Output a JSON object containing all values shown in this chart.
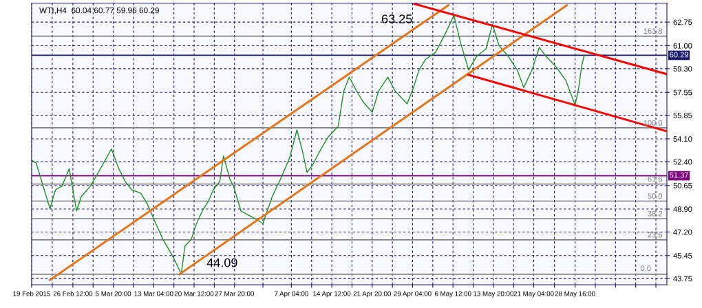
{
  "chart_data": {
    "type": "line",
    "title": "WTI,H4  60.04 60.77 59.96 60.29",
    "xlim": [
      "2015-02-19T00:00",
      "2015-06-14T08:00"
    ],
    "ylim": [
      43.28,
      64.16
    ],
    "xticks": [
      {
        "value": "2015-02-19T00:00",
        "label": "19 Feb 2015"
      },
      {
        "value": "2015-02-22T18:00",
        "label": null
      },
      {
        "value": "2015-02-26T12:00",
        "label": "26 Feb 12:00"
      },
      {
        "value": "2015-03-02T04:00",
        "label": null
      },
      {
        "value": "2015-03-05T20:00",
        "label": "5 Mar 20:00"
      },
      {
        "value": "2015-03-09T12:00",
        "label": null
      },
      {
        "value": "2015-03-13T04:00",
        "label": "13 Mar 04:00"
      },
      {
        "value": "2015-03-16T20:00",
        "label": null
      },
      {
        "value": "2015-03-20T12:00",
        "label": "20 Mar 12:00"
      },
      {
        "value": "2015-03-24T04:00",
        "label": null
      },
      {
        "value": "2015-03-27T20:00",
        "label": "27 Mar 20:00"
      },
      {
        "value": "2015-04-02T00:00",
        "label": null
      },
      {
        "value": "2015-04-07T04:00",
        "label": "7 Apr 04:00"
      },
      {
        "value": "2015-04-10T20:00",
        "label": null
      },
      {
        "value": "2015-04-14T12:00",
        "label": "14 Apr 12:00"
      },
      {
        "value": "2015-04-18T04:00",
        "label": null
      },
      {
        "value": "2015-04-21T20:00",
        "label": "21 Apr 20:00"
      },
      {
        "value": "2015-04-25T12:00",
        "label": null
      },
      {
        "value": "2015-04-29T04:00",
        "label": "29 Apr 04:00"
      },
      {
        "value": "2015-05-02T20:00",
        "label": null
      },
      {
        "value": "2015-05-06T12:00",
        "label": "6 May 12:00"
      },
      {
        "value": "2015-05-10T04:00",
        "label": null
      },
      {
        "value": "2015-05-13T20:00",
        "label": "13 May 20:00"
      },
      {
        "value": "2015-05-17T12:00",
        "label": null
      },
      {
        "value": "2015-05-21T04:00",
        "label": "21 May 04:00"
      },
      {
        "value": "2015-05-24T22:00",
        "label": null
      },
      {
        "value": "2015-05-28T16:00",
        "label": "28 May 16:00"
      },
      {
        "value": "2015-06-01T08:00",
        "label": null
      },
      {
        "value": "2015-06-05T00:00",
        "label": null
      },
      {
        "value": "2015-06-08T16:00",
        "label": null
      },
      {
        "value": "2015-06-12T08:00",
        "label": null
      }
    ],
    "yticks": [
      {
        "value": 62.75,
        "label": "62.75"
      },
      {
        "value": 61.0,
        "label": "61.00"
      },
      {
        "value": 59.3,
        "label": "59.30"
      },
      {
        "value": 57.55,
        "label": "57.55"
      },
      {
        "value": 55.85,
        "label": "55.85"
      },
      {
        "value": 54.1,
        "label": "54.10"
      },
      {
        "value": 52.4,
        "label": "52.40"
      },
      {
        "value": 50.65,
        "label": "50.65"
      },
      {
        "value": 48.9,
        "label": "48.90"
      },
      {
        "value": 47.2,
        "label": "47.20"
      },
      {
        "value": 45.45,
        "label": "45.45"
      },
      {
        "value": 43.75,
        "label": "43.75"
      }
    ],
    "grid": true,
    "legend": false,
    "line_style": "solid",
    "marker": "none",
    "series": [
      {
        "color": "#1f8f1f",
        "x": [
          "2015-02-19T00:00",
          "2015-02-19T20:00",
          "2015-02-22T08:00",
          "2015-02-23T08:00",
          "2015-02-24T12:00",
          "2015-02-25T20:00",
          "2015-02-27T04:00",
          "2015-02-28T00:00",
          "2015-03-01T16:00",
          "2015-03-03T12:00",
          "2015-03-05T12:00",
          "2015-03-06T20:00",
          "2015-03-08T00:00",
          "2015-03-09T04:00",
          "2015-03-10T20:00",
          "2015-03-12T00:00",
          "2015-03-13T16:00",
          "2015-03-14T20:00",
          "2015-03-16T16:00",
          "2015-03-18T04:00",
          "2015-03-18T20:00",
          "2015-03-20T00:00",
          "2015-03-20T20:00",
          "2015-03-22T00:00",
          "2015-03-23T04:00",
          "2015-03-24T00:00",
          "2015-03-25T04:00",
          "2015-03-25T20:00",
          "2015-03-27T00:00",
          "2015-03-27T16:00",
          "2015-03-29T00:00",
          "2015-03-31T08:00",
          "2015-04-02T00:00",
          "2015-04-03T16:00",
          "2015-04-05T04:00",
          "2015-04-06T20:00",
          "2015-04-08T04:00",
          "2015-04-09T04:00",
          "2015-04-10T00:00",
          "2015-04-11T00:00",
          "2015-04-12T08:00",
          "2015-04-13T20:00",
          "2015-04-15T16:00",
          "2015-04-16T16:00",
          "2015-04-17T16:00",
          "2015-04-19T00:00",
          "2015-04-20T04:00",
          "2015-04-21T20:00",
          "2015-04-23T00:00",
          "2015-04-24T16:00",
          "2015-04-26T00:00",
          "2015-04-28T04:00",
          "2015-04-29T08:00",
          "2015-04-30T08:00",
          "2015-05-01T12:00",
          "2015-05-03T08:00",
          "2015-05-05T00:00",
          "2015-05-06T16:00",
          "2015-05-07T20:00",
          "2015-05-09T08:00",
          "2015-05-10T20:00",
          "2015-05-12T12:00",
          "2015-05-13T16:00",
          "2015-05-14T20:00",
          "2015-05-16T12:00",
          "2015-05-18T04:00",
          "2015-05-19T08:00",
          "2015-05-20T20:00",
          "2015-05-22T04:00",
          "2015-05-23T08:00",
          "2015-05-25T04:00",
          "2015-05-27T00:00",
          "2015-05-28T16:00",
          "2015-05-29T08:00",
          "2015-05-29T20:00",
          "2015-05-30T08:00"
        ],
        "values": [
          52.52,
          52.31,
          48.92,
          50.33,
          50.59,
          51.89,
          48.76,
          49.81,
          50.59,
          51.89,
          53.36,
          51.89,
          50.95,
          50.33,
          50.07,
          49.28,
          47.72,
          46.67,
          45.37,
          44.09,
          46.15,
          46.67,
          47.72,
          48.76,
          49.55,
          50.33,
          50.95,
          52.83,
          51.11,
          50.59,
          48.76,
          48.24,
          47.82,
          49.81,
          51.11,
          52.68,
          54.76,
          53.2,
          51.63,
          52.15,
          53.2,
          54.24,
          55.03,
          57.64,
          58.68,
          57.64,
          56.85,
          56.07,
          57.64,
          58.68,
          57.64,
          56.7,
          57.9,
          59.2,
          59.98,
          60.51,
          61.81,
          63.25,
          61.29,
          59.2,
          60.24,
          60.77,
          62.59,
          61.03,
          60.24,
          59.2,
          57.9,
          59.2,
          60.87,
          60.24,
          59.46,
          58.42,
          56.59,
          57.9,
          59.46,
          60.29
        ]
      },
      {
        "color": "#e07820",
        "x": [
          "2015-02-22T08:00",
          "2015-05-05T16:00"
        ],
        "values": [
          43.65,
          64.0
        ]
      },
      {
        "color": "#e07820",
        "x": [
          "2015-03-17T20:00",
          "2015-05-27T04:00"
        ],
        "values": [
          44.07,
          64.0
        ]
      },
      {
        "color": "#ff0000",
        "x": [
          "2015-04-29T12:00",
          "2015-06-14T08:00"
        ],
        "values": [
          64.1,
          58.89
        ]
      },
      {
        "color": "#ff0000",
        "x": [
          "2015-05-09T08:00",
          "2015-06-14T08:00"
        ],
        "values": [
          58.84,
          54.66
        ]
      }
    ],
    "ref_lines": [
      {
        "axis": "y",
        "value": 60.29,
        "label": "60.29",
        "color": "#1a1a6e"
      },
      {
        "axis": "y",
        "value": 51.37,
        "label": "51.37",
        "color": "#800080"
      },
      {
        "axis": "y",
        "value": 61.71,
        "color": "#808080"
      },
      {
        "axis": "y",
        "value": 54.92,
        "color": "#808080"
      },
      {
        "axis": "y",
        "value": 50.75,
        "color": "#808080"
      },
      {
        "axis": "y",
        "value": 49.49,
        "color": "#808080"
      },
      {
        "axis": "y",
        "value": 48.19,
        "color": "#808080"
      },
      {
        "axis": "y",
        "value": 46.62,
        "color": "#808080"
      },
      {
        "axis": "y",
        "value": 44.07,
        "color": "#808080"
      }
    ],
    "annotations": [
      "63.25",
      "44.09",
      "161.8",
      "100.0",
      "61.8",
      "50.0",
      "38.2",
      "23.6",
      "0.0"
    ]
  }
}
